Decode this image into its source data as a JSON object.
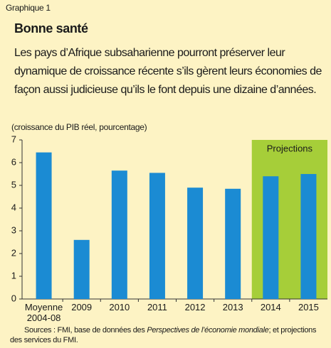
{
  "chart_data": {
    "type": "bar",
    "label": "Graphique 1",
    "title": "Bonne santé",
    "subtitle": "Les pays d’Afrique subsaharienne pourront préserver leur dynamique de croissance récente s’ils gèrent leurs économies de façon aussi judicieuse qu’ils le font depuis une dizaine d’années.",
    "y_label": "(croissance du PIB réel, pourcentage)",
    "categories": [
      "Moyenne 2004-08",
      "2009",
      "2010",
      "2011",
      "2012",
      "2013",
      "2014",
      "2015"
    ],
    "values": [
      6.45,
      2.6,
      5.65,
      5.55,
      4.9,
      4.85,
      5.4,
      5.5
    ],
    "color": "#1b8bd3",
    "ylim": [
      0,
      7
    ],
    "yticks": [
      0,
      1,
      2,
      3,
      4,
      5,
      6,
      7
    ],
    "grid": false,
    "projection": {
      "label": "Projections",
      "from": "2014",
      "color": "#a6ce39"
    },
    "source": [
      "Sources : FMI, base de données des ",
      "Perspectives de l’économie mondiale",
      "; et projections des services du FMI."
    ]
  }
}
